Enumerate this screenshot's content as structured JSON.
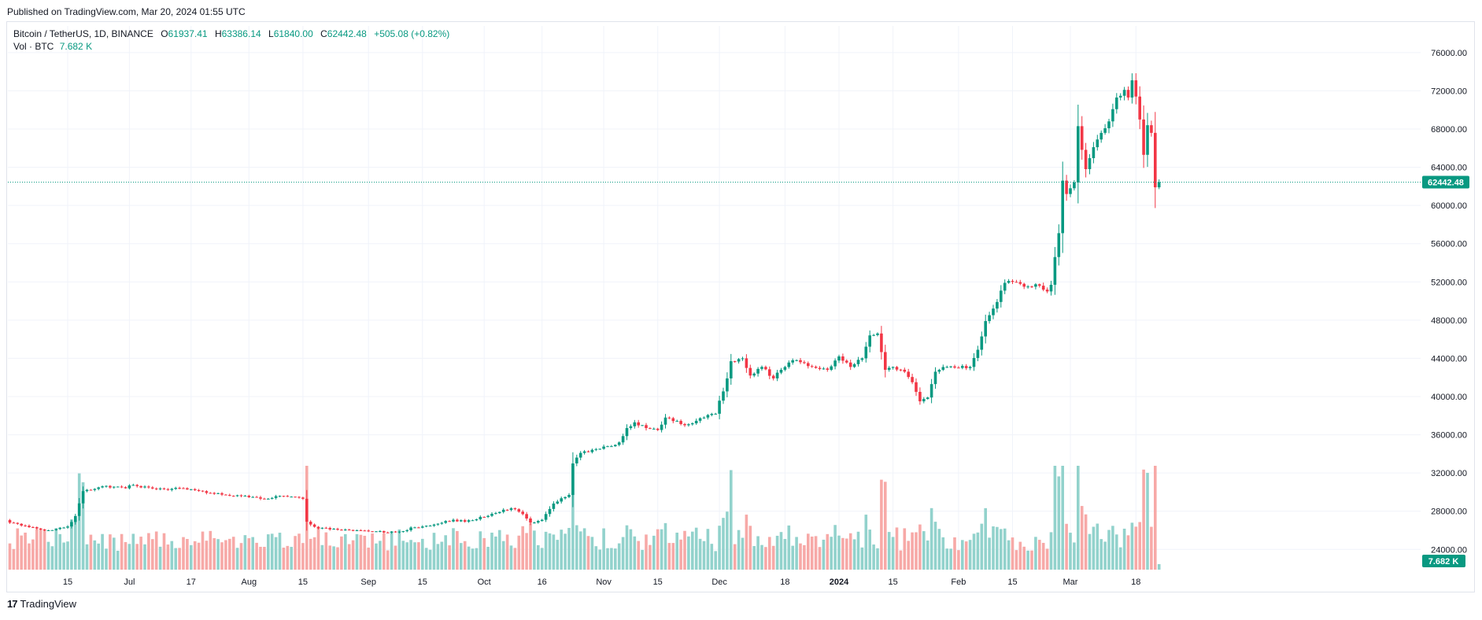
{
  "published": "Published on TradingView.com, Mar 20, 2024 01:55 UTC",
  "legend": {
    "symbol": "Bitcoin / TetherUS, 1D, BINANCE",
    "open_key": "O",
    "open": "61937.41",
    "high_key": "H",
    "high": "63386.14",
    "low_key": "L",
    "low": "61840.00",
    "close_key": "C",
    "close": "62442.48",
    "change": "+505.08 (+0.82%)",
    "vol_label": "Vol · BTC",
    "vol_value": "7.682 K"
  },
  "footer": {
    "logo_mark": "17",
    "logo_text": "TradingView"
  },
  "colors": {
    "up": "#089981",
    "down": "#f23645",
    "vol_up": "#92d2cc",
    "vol_down": "#f7a9a7",
    "grid": "#f0f3fa",
    "price_line": "#089981"
  },
  "chart_data": {
    "type": "candlestick",
    "price_axis": {
      "ticks": [
        "76000.00",
        "72000.00",
        "68000.00",
        "64000.00",
        "60000.00",
        "56000.00",
        "52000.00",
        "48000.00",
        "44000.00",
        "40000.00",
        "36000.00",
        "32000.00",
        "28000.00",
        "24000.00"
      ],
      "ylim": [
        21800,
        77800
      ],
      "last_price_label": "62442.48",
      "last_price": 62442.48
    },
    "volume_axis": {
      "last_volume_label": "7.682 K"
    },
    "x_axis": {
      "ticks": [
        {
          "label": "15",
          "day": 15
        },
        {
          "label": "Jul",
          "day": 31
        },
        {
          "label": "17",
          "day": 47
        },
        {
          "label": "Aug",
          "day": 62
        },
        {
          "label": "15",
          "day": 76
        },
        {
          "label": "Sep",
          "day": 93
        },
        {
          "label": "15",
          "day": 107
        },
        {
          "label": "Oct",
          "day": 123
        },
        {
          "label": "16",
          "day": 138
        },
        {
          "label": "Nov",
          "day": 154
        },
        {
          "label": "15",
          "day": 168
        },
        {
          "label": "Dec",
          "day": 184
        },
        {
          "label": "18",
          "day": 201
        },
        {
          "label": "2024",
          "day": 215
        },
        {
          "label": "15",
          "day": 229
        },
        {
          "label": "Feb",
          "day": 246
        },
        {
          "label": "15",
          "day": 260
        },
        {
          "label": "Mar",
          "day": 275
        },
        {
          "label": "18",
          "day": 292
        }
      ]
    },
    "series": [
      {
        "name": "Price",
        "key_points": [
          [
            0,
            26800
          ],
          [
            10,
            26000
          ],
          [
            15,
            26400
          ],
          [
            17,
            27500
          ],
          [
            19,
            30100
          ],
          [
            24,
            30600
          ],
          [
            30,
            30400
          ],
          [
            31,
            30700
          ],
          [
            40,
            30300
          ],
          [
            45,
            30400
          ],
          [
            50,
            30100
          ],
          [
            56,
            29700
          ],
          [
            60,
            29600
          ],
          [
            66,
            29300
          ],
          [
            70,
            29600
          ],
          [
            74,
            29500
          ],
          [
            76,
            29300
          ],
          [
            77,
            26900
          ],
          [
            80,
            26200
          ],
          [
            90,
            26000
          ],
          [
            93,
            25900
          ],
          [
            100,
            25800
          ],
          [
            105,
            26300
          ],
          [
            110,
            26600
          ],
          [
            115,
            27100
          ],
          [
            118,
            26900
          ],
          [
            123,
            27400
          ],
          [
            126,
            27800
          ],
          [
            130,
            28300
          ],
          [
            133,
            27700
          ],
          [
            135,
            26800
          ],
          [
            138,
            27100
          ],
          [
            141,
            28800
          ],
          [
            145,
            29700
          ],
          [
            146,
            33000
          ],
          [
            148,
            34100
          ],
          [
            152,
            34500
          ],
          [
            156,
            34800
          ],
          [
            158,
            35200
          ],
          [
            160,
            36700
          ],
          [
            162,
            37300
          ],
          [
            165,
            36700
          ],
          [
            168,
            36500
          ],
          [
            170,
            37800
          ],
          [
            175,
            37000
          ],
          [
            180,
            37800
          ],
          [
            183,
            38200
          ],
          [
            186,
            41900
          ],
          [
            187,
            43700
          ],
          [
            190,
            44000
          ],
          [
            192,
            42200
          ],
          [
            195,
            43100
          ],
          [
            198,
            41900
          ],
          [
            200,
            42800
          ],
          [
            203,
            43800
          ],
          [
            206,
            43500
          ],
          [
            209,
            43000
          ],
          [
            212,
            42800
          ],
          [
            215,
            44200
          ],
          [
            218,
            43100
          ],
          [
            221,
            44000
          ],
          [
            223,
            46400
          ],
          [
            225,
            46600
          ],
          [
            227,
            42800
          ],
          [
            229,
            43100
          ],
          [
            232,
            42600
          ],
          [
            234,
            41500
          ],
          [
            236,
            39500
          ],
          [
            238,
            39900
          ],
          [
            240,
            42600
          ],
          [
            243,
            43100
          ],
          [
            246,
            43000
          ],
          [
            249,
            43100
          ],
          [
            251,
            44900
          ],
          [
            253,
            47900
          ],
          [
            256,
            49900
          ],
          [
            258,
            51900
          ],
          [
            260,
            52000
          ],
          [
            262,
            51800
          ],
          [
            265,
            51500
          ],
          [
            267,
            51600
          ],
          [
            269,
            51000
          ],
          [
            270,
            51700
          ],
          [
            271,
            54600
          ],
          [
            272,
            57100
          ],
          [
            273,
            62600
          ],
          [
            274,
            61200
          ],
          [
            275,
            61800
          ],
          [
            276,
            62400
          ],
          [
            277,
            68300
          ],
          [
            279,
            63800
          ],
          [
            281,
            66100
          ],
          [
            283,
            67600
          ],
          [
            285,
            68800
          ],
          [
            287,
            71300
          ],
          [
            289,
            72100
          ],
          [
            290,
            71300
          ],
          [
            291,
            73100
          ],
          [
            292,
            71400
          ],
          [
            293,
            69000
          ],
          [
            294,
            65300
          ],
          [
            295,
            68400
          ],
          [
            296,
            67600
          ],
          [
            297,
            61900
          ],
          [
            298,
            62442
          ]
        ]
      }
    ]
  }
}
